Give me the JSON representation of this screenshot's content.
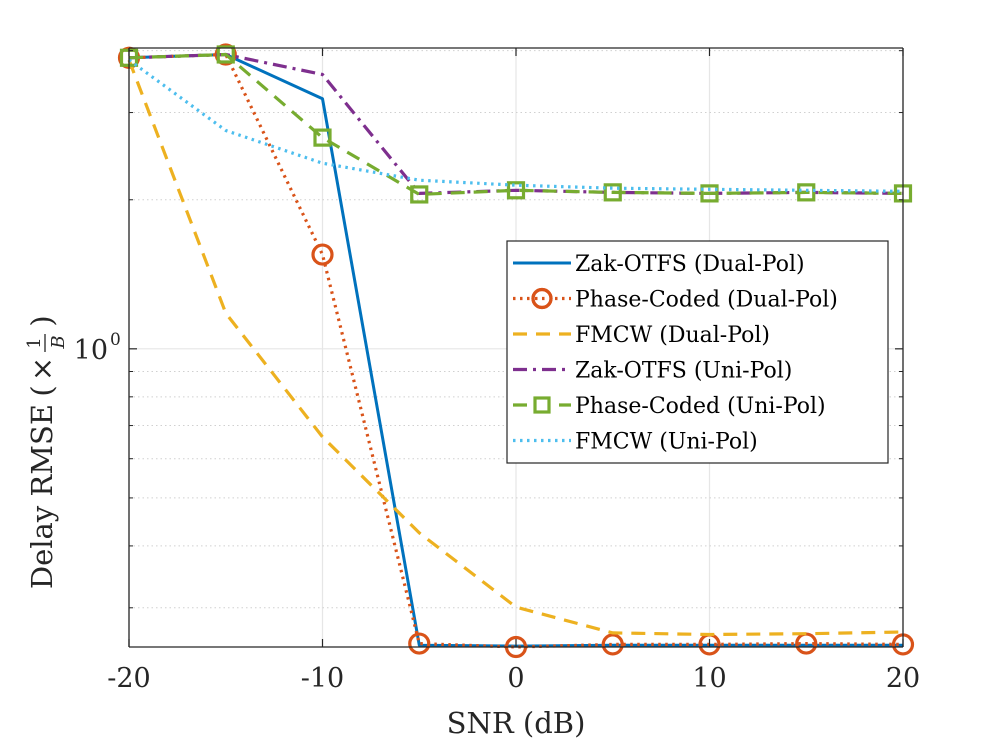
{
  "chart_data": {
    "type": "line",
    "title": "",
    "xlabel": "SNR (dB)",
    "ylabel": "Delay RMSE",
    "ylabel_unit": "(× 1/B)",
    "ylabel_unit_parts": {
      "times": "×",
      "numerator": "1",
      "denominator": "B"
    },
    "xlim": [
      -20,
      20
    ],
    "ylim": [
      0.25,
      4.05
    ],
    "yscale": "log",
    "grid": true,
    "legend_position": "center-right",
    "x": [
      -20,
      -15,
      -10,
      -5,
      0,
      5,
      10,
      15,
      20
    ],
    "xticks": [
      -20,
      -10,
      0,
      10,
      20
    ],
    "xtick_labels": [
      "-20",
      "-10",
      "0",
      "10",
      "20"
    ],
    "yticks": [
      1
    ],
    "ytick_labels": [
      {
        "base": "10",
        "exp": "0"
      }
    ],
    "series": [
      {
        "name": "Zak-OTFS (Dual-Pol)",
        "color": "#0072BD",
        "line": "solid",
        "marker": "none",
        "values": [
          3.87,
          3.93,
          3.2,
          0.252,
          0.251,
          0.252,
          0.252,
          0.252,
          0.252
        ]
      },
      {
        "name": "Phase-Coded (Dual-Pol)",
        "color": "#D95319",
        "line": "dotted",
        "marker": "circle",
        "values": [
          3.87,
          3.93,
          1.55,
          0.254,
          0.25,
          0.253,
          0.253,
          0.254,
          0.253
        ]
      },
      {
        "name": "FMCW (Dual-Pol)",
        "color": "#EDB120",
        "line": "dashed",
        "marker": "none",
        "values": [
          3.83,
          1.18,
          0.664,
          0.425,
          0.301,
          0.267,
          0.265,
          0.266,
          0.268
        ]
      },
      {
        "name": "Zak-OTFS (Uni-Pol)",
        "color": "#7E2F8E",
        "line": "dashdot",
        "marker": "none",
        "values": [
          3.87,
          3.93,
          3.58,
          2.06,
          2.09,
          2.07,
          2.06,
          2.07,
          2.06
        ]
      },
      {
        "name": "Phase-Coded (Uni-Pol)",
        "color": "#77AC30",
        "line": "dashed",
        "marker": "square",
        "values": [
          3.87,
          3.93,
          2.67,
          2.05,
          2.09,
          2.07,
          2.06,
          2.07,
          2.06
        ]
      },
      {
        "name": "FMCW (Uni-Pol)",
        "color": "#4DBEEE",
        "line": "dotted",
        "marker": "none",
        "values": [
          3.83,
          2.76,
          2.37,
          2.19,
          2.14,
          2.11,
          2.1,
          2.09,
          2.08
        ]
      }
    ]
  }
}
